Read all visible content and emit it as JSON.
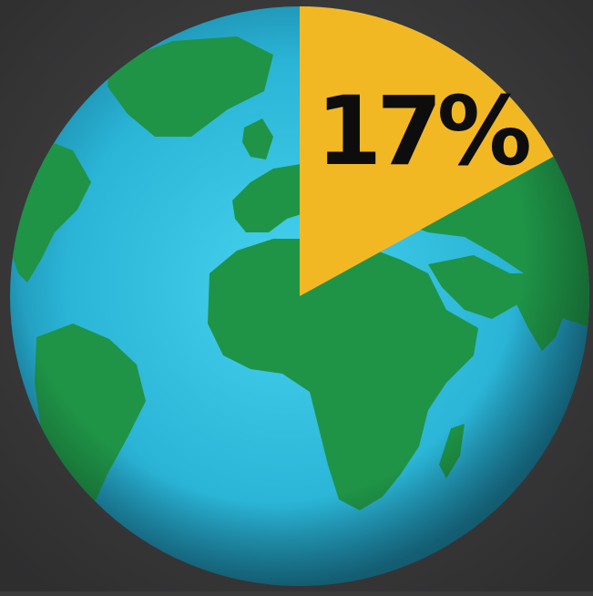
{
  "chart_data": {
    "type": "pie",
    "slices": [
      {
        "label": "17%",
        "value": 17,
        "color": "#f2b824"
      },
      {
        "label": "",
        "value": 83,
        "color": "transparent"
      }
    ],
    "data_labels": [
      "17%"
    ],
    "title": "",
    "legend": "none"
  },
  "colors": {
    "background": "#3b3b3c",
    "ocean": "#2bb6d6",
    "ocean_center": "#3fcbe8",
    "land": "#1f9447",
    "highlight": "#f2b824",
    "label_text": "#0d0d0d"
  },
  "icons": {
    "globe": "globe-icon"
  }
}
